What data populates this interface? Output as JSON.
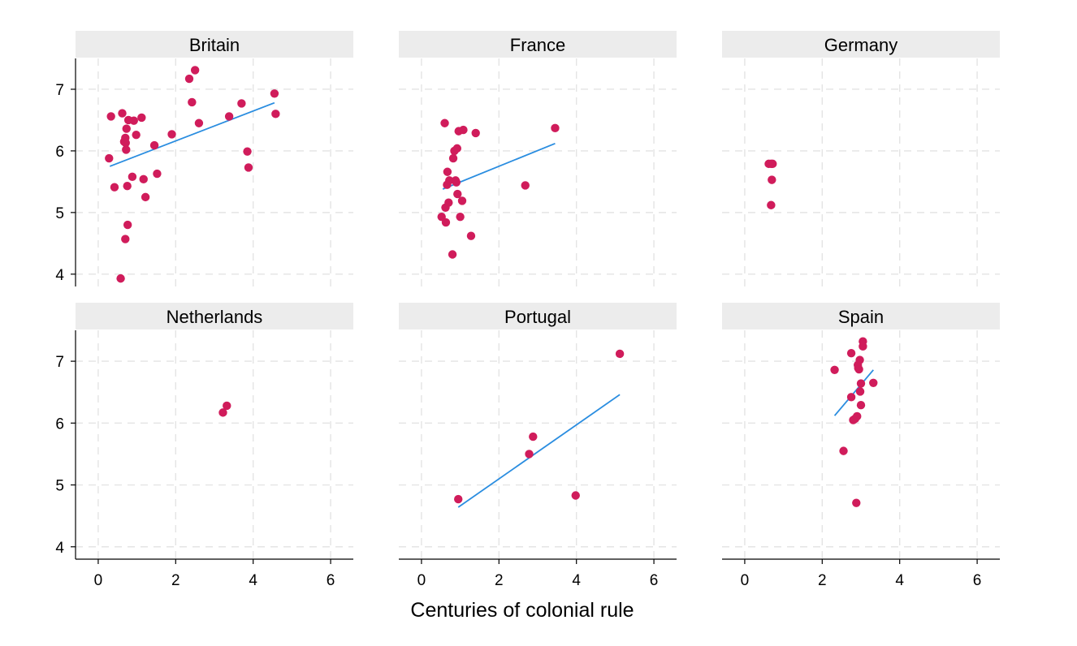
{
  "chart_data": {
    "type": "scatter",
    "layout": "facet-grid-2x3",
    "xlabel": "Centuries of colonial rule",
    "ylabel": "",
    "xlim": [
      -0.25,
      6.25
    ],
    "ylim": [
      3.8,
      7.5
    ],
    "xticks": [
      0,
      2,
      4,
      6
    ],
    "yticks": [
      4,
      5,
      6,
      7
    ],
    "grid": true,
    "point_color": "#d01c5b",
    "fit_line_color": "#2a8de0",
    "strip_color": "#ececec",
    "grid_color": "#e4e4e4",
    "panels": [
      {
        "title": "Britain",
        "points": [
          [
            0.28,
            5.88
          ],
          [
            0.33,
            6.56
          ],
          [
            0.42,
            5.41
          ],
          [
            0.62,
            6.61
          ],
          [
            0.67,
            6.15
          ],
          [
            0.7,
            6.21
          ],
          [
            0.71,
            6.13
          ],
          [
            0.72,
            6.02
          ],
          [
            0.73,
            6.36
          ],
          [
            0.75,
            5.43
          ],
          [
            0.78,
            6.5
          ],
          [
            0.58,
            3.93
          ],
          [
            0.7,
            4.57
          ],
          [
            0.76,
            4.8
          ],
          [
            0.88,
            5.58
          ],
          [
            0.92,
            6.49
          ],
          [
            0.98,
            6.26
          ],
          [
            1.12,
            6.54
          ],
          [
            1.17,
            5.54
          ],
          [
            1.22,
            5.25
          ],
          [
            1.45,
            6.09
          ],
          [
            1.52,
            5.63
          ],
          [
            1.9,
            6.27
          ],
          [
            2.35,
            7.17
          ],
          [
            2.42,
            6.79
          ],
          [
            2.5,
            7.31
          ],
          [
            2.6,
            6.45
          ],
          [
            3.38,
            6.56
          ],
          [
            3.7,
            6.77
          ],
          [
            3.85,
            5.99
          ],
          [
            3.88,
            5.73
          ],
          [
            4.55,
            6.93
          ],
          [
            4.58,
            6.6
          ]
        ],
        "fit": [
          [
            0.3,
            5.75
          ],
          [
            4.55,
            6.78
          ]
        ]
      },
      {
        "title": "France",
        "points": [
          [
            0.52,
            4.93
          ],
          [
            0.6,
            6.45
          ],
          [
            0.62,
            5.08
          ],
          [
            0.63,
            4.84
          ],
          [
            0.66,
            5.45
          ],
          [
            0.67,
            5.66
          ],
          [
            0.7,
            5.16
          ],
          [
            0.72,
            5.52
          ],
          [
            0.8,
            4.32
          ],
          [
            0.82,
            5.88
          ],
          [
            0.85,
            6.0
          ],
          [
            0.88,
            5.52
          ],
          [
            0.9,
            5.49
          ],
          [
            0.92,
            6.04
          ],
          [
            0.93,
            5.3
          ],
          [
            0.96,
            6.32
          ],
          [
            1.0,
            4.93
          ],
          [
            1.05,
            5.19
          ],
          [
            1.08,
            6.34
          ],
          [
            1.28,
            4.62
          ],
          [
            1.4,
            6.29
          ],
          [
            2.68,
            5.44
          ],
          [
            3.45,
            6.37
          ]
        ],
        "fit": [
          [
            0.55,
            5.38
          ],
          [
            3.45,
            6.12
          ]
        ]
      },
      {
        "title": "Germany",
        "points": [
          [
            0.62,
            5.79
          ],
          [
            0.68,
            5.79
          ],
          [
            0.72,
            5.79
          ],
          [
            0.7,
            5.53
          ],
          [
            0.68,
            5.12
          ]
        ],
        "fit": []
      },
      {
        "title": "Netherlands",
        "points": [
          [
            3.22,
            6.17
          ],
          [
            3.32,
            6.28
          ]
        ],
        "fit": []
      },
      {
        "title": "Portugal",
        "points": [
          [
            0.95,
            4.77
          ],
          [
            2.78,
            5.5
          ],
          [
            2.88,
            5.78
          ],
          [
            3.98,
            4.83
          ],
          [
            5.12,
            7.12
          ]
        ],
        "fit": [
          [
            0.95,
            4.64
          ],
          [
            5.12,
            6.46
          ]
        ]
      },
      {
        "title": "Spain",
        "points": [
          [
            2.32,
            6.86
          ],
          [
            2.55,
            5.55
          ],
          [
            2.75,
            7.13
          ],
          [
            2.75,
            6.42
          ],
          [
            2.8,
            6.05
          ],
          [
            2.85,
            6.07
          ],
          [
            2.88,
            4.71
          ],
          [
            2.9,
            6.11
          ],
          [
            2.92,
            6.94
          ],
          [
            2.93,
            6.89
          ],
          [
            2.95,
            6.87
          ],
          [
            2.97,
            7.02
          ],
          [
            2.98,
            6.51
          ],
          [
            3.0,
            6.64
          ],
          [
            3.0,
            6.29
          ],
          [
            3.05,
            7.32
          ],
          [
            3.05,
            7.24
          ],
          [
            3.32,
            6.65
          ]
        ],
        "fit": [
          [
            2.32,
            6.12
          ],
          [
            3.32,
            6.86
          ]
        ]
      }
    ]
  }
}
